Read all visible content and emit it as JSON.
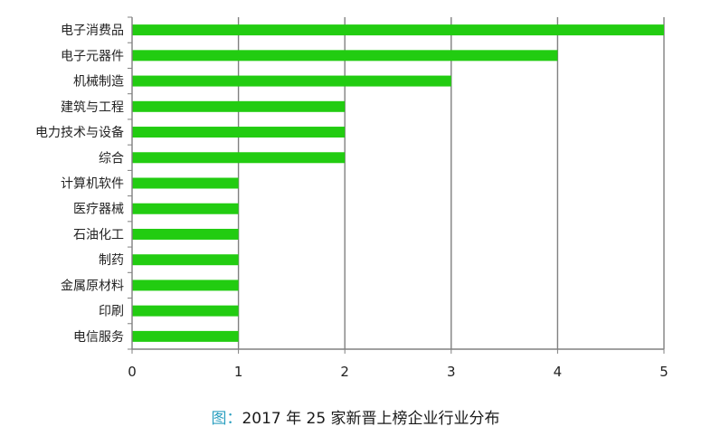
{
  "chart_data": {
    "type": "bar",
    "orientation": "horizontal",
    "categories": [
      "电子消费品",
      "电子元器件",
      "机械制造",
      "建筑与工程",
      "电力技术与设备",
      "综合",
      "计算机软件",
      "医疗器械",
      "石油化工",
      "制药",
      "金属原材料",
      "印刷",
      "电信服务"
    ],
    "values": [
      5,
      4,
      3,
      2,
      2,
      2,
      1,
      1,
      1,
      1,
      1,
      1,
      1
    ],
    "xlim": [
      0,
      5
    ],
    "xticks": [
      "0",
      "1",
      "2",
      "3",
      "4",
      "5"
    ],
    "grid": "vertical",
    "bar_color": "#22cc11",
    "xlabel": "",
    "ylabel": ""
  },
  "caption": {
    "prefix": "图：",
    "text": "2017 年 25 家新晋上榜企业行业分布"
  }
}
